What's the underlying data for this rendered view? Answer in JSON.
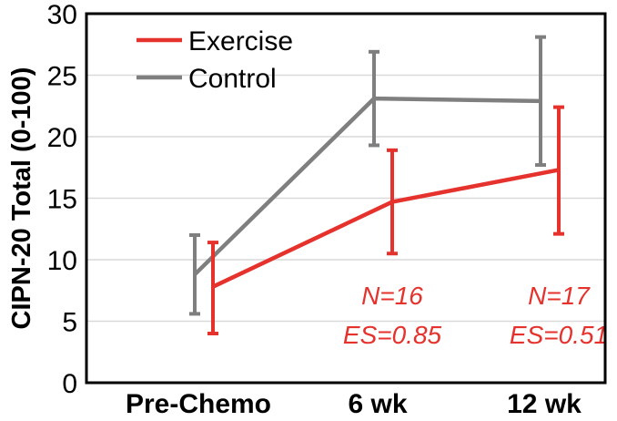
{
  "chart_data": {
    "type": "line",
    "title": "",
    "xlabel": "",
    "ylabel": "CIPN-20 Total (0-100)",
    "ylim": [
      0,
      30
    ],
    "yticks": [
      0,
      5,
      10,
      15,
      20,
      25,
      30
    ],
    "grid": "horizontal",
    "categories": [
      "Pre-Chemo",
      "6 wk",
      "12 wk"
    ],
    "legend_position": "top-left",
    "series": [
      {
        "name": "Exercise",
        "color": "#e5322d",
        "values": [
          7.8,
          14.7,
          17.3
        ],
        "err_low": [
          4.0,
          10.5,
          12.1
        ],
        "err_high": [
          11.4,
          18.9,
          22.4
        ]
      },
      {
        "name": "Control",
        "color": "#7f7f7f",
        "values": [
          8.8,
          23.1,
          22.9
        ],
        "err_low": [
          5.6,
          19.3,
          17.7
        ],
        "err_high": [
          12.0,
          26.9,
          28.1
        ]
      }
    ],
    "annotations": [
      {
        "category": "6 wk",
        "color": "#e5322d",
        "lines": [
          "N=16",
          "ES=0.85"
        ]
      },
      {
        "category": "12 wk",
        "color": "#e5322d",
        "lines": [
          "N=17",
          "ES=0.51"
        ]
      }
    ]
  }
}
